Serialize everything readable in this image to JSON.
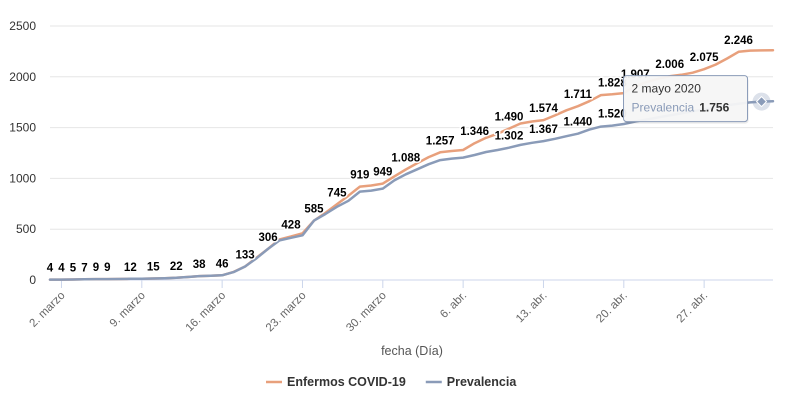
{
  "chart_data": {
    "type": "line",
    "title": "",
    "xlabel": "fecha (Día)",
    "ylabel": "",
    "ylim": [
      0,
      2500
    ],
    "yticks": [
      "0",
      "500",
      "1000",
      "1500",
      "2000",
      "2500"
    ],
    "yticks_values": [
      0,
      500,
      1000,
      1500,
      2000,
      2500
    ],
    "grid": true,
    "legend_position": "bottom-center",
    "x_start": "2020-03-01",
    "x_end": "2020-05-03",
    "xticks": [
      {
        "date": "2020-03-02",
        "label": "2. marzo"
      },
      {
        "date": "2020-03-09",
        "label": "9. marzo"
      },
      {
        "date": "2020-03-16",
        "label": "16. marzo"
      },
      {
        "date": "2020-03-23",
        "label": "23. marzo"
      },
      {
        "date": "2020-03-30",
        "label": "30. marzo"
      },
      {
        "date": "2020-04-06",
        "label": "6. abr."
      },
      {
        "date": "2020-04-13",
        "label": "13. abr."
      },
      {
        "date": "2020-04-20",
        "label": "20. abr."
      },
      {
        "date": "2020-04-27",
        "label": "27. abr."
      }
    ],
    "series": [
      {
        "name": "Enfermos COVID-19",
        "color": "#e8a07c",
        "points": [
          {
            "x": "2020-03-01",
            "y": 4
          },
          {
            "x": "2020-03-02",
            "y": 4
          },
          {
            "x": "2020-03-03",
            "y": 5
          },
          {
            "x": "2020-03-04",
            "y": 7
          },
          {
            "x": "2020-03-05",
            "y": 9
          },
          {
            "x": "2020-03-06",
            "y": 9
          },
          {
            "x": "2020-03-07",
            "y": 10
          },
          {
            "x": "2020-03-08",
            "y": 12
          },
          {
            "x": "2020-03-09",
            "y": 13
          },
          {
            "x": "2020-03-10",
            "y": 15
          },
          {
            "x": "2020-03-11",
            "y": 18
          },
          {
            "x": "2020-03-12",
            "y": 22
          },
          {
            "x": "2020-03-13",
            "y": 30
          },
          {
            "x": "2020-03-14",
            "y": 38
          },
          {
            "x": "2020-03-15",
            "y": 42
          },
          {
            "x": "2020-03-16",
            "y": 46
          },
          {
            "x": "2020-03-17",
            "y": 80
          },
          {
            "x": "2020-03-18",
            "y": 133
          },
          {
            "x": "2020-03-19",
            "y": 220
          },
          {
            "x": "2020-03-20",
            "y": 306
          },
          {
            "x": "2020-03-21",
            "y": 400
          },
          {
            "x": "2020-03-22",
            "y": 428
          },
          {
            "x": "2020-03-23",
            "y": 460
          },
          {
            "x": "2020-03-24",
            "y": 585
          },
          {
            "x": "2020-03-25",
            "y": 660
          },
          {
            "x": "2020-03-26",
            "y": 745
          },
          {
            "x": "2020-03-27",
            "y": 830
          },
          {
            "x": "2020-03-28",
            "y": 919
          },
          {
            "x": "2020-03-29",
            "y": 930
          },
          {
            "x": "2020-03-30",
            "y": 949
          },
          {
            "x": "2020-03-31",
            "y": 1020
          },
          {
            "x": "2020-04-01",
            "y": 1088
          },
          {
            "x": "2020-04-02",
            "y": 1150
          },
          {
            "x": "2020-04-03",
            "y": 1210
          },
          {
            "x": "2020-04-04",
            "y": 1257
          },
          {
            "x": "2020-04-05",
            "y": 1270
          },
          {
            "x": "2020-04-06",
            "y": 1280
          },
          {
            "x": "2020-04-07",
            "y": 1346
          },
          {
            "x": "2020-04-08",
            "y": 1400
          },
          {
            "x": "2020-04-09",
            "y": 1440
          },
          {
            "x": "2020-04-10",
            "y": 1490
          },
          {
            "x": "2020-04-11",
            "y": 1540
          },
          {
            "x": "2020-04-12",
            "y": 1560
          },
          {
            "x": "2020-04-13",
            "y": 1574
          },
          {
            "x": "2020-04-14",
            "y": 1620
          },
          {
            "x": "2020-04-15",
            "y": 1670
          },
          {
            "x": "2020-04-16",
            "y": 1711
          },
          {
            "x": "2020-04-17",
            "y": 1760
          },
          {
            "x": "2020-04-18",
            "y": 1820
          },
          {
            "x": "2020-04-19",
            "y": 1828
          },
          {
            "x": "2020-04-20",
            "y": 1840
          },
          {
            "x": "2020-04-21",
            "y": 1907
          },
          {
            "x": "2020-04-22",
            "y": 1950
          },
          {
            "x": "2020-04-23",
            "y": 1980
          },
          {
            "x": "2020-04-24",
            "y": 2006
          },
          {
            "x": "2020-04-25",
            "y": 2020
          },
          {
            "x": "2020-04-26",
            "y": 2040
          },
          {
            "x": "2020-04-27",
            "y": 2075
          },
          {
            "x": "2020-04-28",
            "y": 2120
          },
          {
            "x": "2020-04-29",
            "y": 2180
          },
          {
            "x": "2020-04-30",
            "y": 2246
          },
          {
            "x": "2020-05-01",
            "y": 2258
          },
          {
            "x": "2020-05-02",
            "y": 2260
          },
          {
            "x": "2020-05-03",
            "y": 2262
          }
        ]
      },
      {
        "name": "Prevalencia",
        "color": "#8a9bb8",
        "points": [
          {
            "x": "2020-03-01",
            "y": 4
          },
          {
            "x": "2020-03-02",
            "y": 4
          },
          {
            "x": "2020-03-03",
            "y": 5
          },
          {
            "x": "2020-03-04",
            "y": 7
          },
          {
            "x": "2020-03-05",
            "y": 9
          },
          {
            "x": "2020-03-06",
            "y": 9
          },
          {
            "x": "2020-03-07",
            "y": 10
          },
          {
            "x": "2020-03-08",
            "y": 12
          },
          {
            "x": "2020-03-09",
            "y": 13
          },
          {
            "x": "2020-03-10",
            "y": 15
          },
          {
            "x": "2020-03-11",
            "y": 18
          },
          {
            "x": "2020-03-12",
            "y": 22
          },
          {
            "x": "2020-03-13",
            "y": 30
          },
          {
            "x": "2020-03-14",
            "y": 38
          },
          {
            "x": "2020-03-15",
            "y": 42
          },
          {
            "x": "2020-03-16",
            "y": 46
          },
          {
            "x": "2020-03-17",
            "y": 78
          },
          {
            "x": "2020-03-18",
            "y": 133
          },
          {
            "x": "2020-03-19",
            "y": 215
          },
          {
            "x": "2020-03-20",
            "y": 306
          },
          {
            "x": "2020-03-21",
            "y": 390
          },
          {
            "x": "2020-03-22",
            "y": 415
          },
          {
            "x": "2020-03-23",
            "y": 440
          },
          {
            "x": "2020-03-24",
            "y": 585
          },
          {
            "x": "2020-03-25",
            "y": 650
          },
          {
            "x": "2020-03-26",
            "y": 720
          },
          {
            "x": "2020-03-27",
            "y": 780
          },
          {
            "x": "2020-03-28",
            "y": 870
          },
          {
            "x": "2020-03-29",
            "y": 880
          },
          {
            "x": "2020-03-30",
            "y": 900
          },
          {
            "x": "2020-03-31",
            "y": 980
          },
          {
            "x": "2020-04-01",
            "y": 1040
          },
          {
            "x": "2020-04-02",
            "y": 1090
          },
          {
            "x": "2020-04-03",
            "y": 1140
          },
          {
            "x": "2020-04-04",
            "y": 1180
          },
          {
            "x": "2020-04-05",
            "y": 1195
          },
          {
            "x": "2020-04-06",
            "y": 1205
          },
          {
            "x": "2020-04-07",
            "y": 1230
          },
          {
            "x": "2020-04-08",
            "y": 1260
          },
          {
            "x": "2020-04-09",
            "y": 1280
          },
          {
            "x": "2020-04-10",
            "y": 1302
          },
          {
            "x": "2020-04-11",
            "y": 1330
          },
          {
            "x": "2020-04-12",
            "y": 1350
          },
          {
            "x": "2020-04-13",
            "y": 1367
          },
          {
            "x": "2020-04-14",
            "y": 1390
          },
          {
            "x": "2020-04-15",
            "y": 1415
          },
          {
            "x": "2020-04-16",
            "y": 1440
          },
          {
            "x": "2020-04-17",
            "y": 1480
          },
          {
            "x": "2020-04-18",
            "y": 1510
          },
          {
            "x": "2020-04-19",
            "y": 1520
          },
          {
            "x": "2020-04-20",
            "y": 1535
          },
          {
            "x": "2020-04-21",
            "y": 1560
          },
          {
            "x": "2020-04-22",
            "y": 1580
          },
          {
            "x": "2020-04-23",
            "y": 1600
          },
          {
            "x": "2020-04-24",
            "y": 1620
          },
          {
            "x": "2020-04-25",
            "y": 1640
          },
          {
            "x": "2020-04-26",
            "y": 1660
          },
          {
            "x": "2020-04-27",
            "y": 1680
          },
          {
            "x": "2020-04-28",
            "y": 1700
          },
          {
            "x": "2020-04-29",
            "y": 1720
          },
          {
            "x": "2020-04-30",
            "y": 1735
          },
          {
            "x": "2020-05-01",
            "y": 1748
          },
          {
            "x": "2020-05-02",
            "y": 1756
          },
          {
            "x": "2020-05-03",
            "y": 1760
          }
        ]
      }
    ],
    "data_labels": [
      {
        "series": 0,
        "x": "2020-03-01",
        "text": "4"
      },
      {
        "series": 0,
        "x": "2020-03-02",
        "text": "4"
      },
      {
        "series": 0,
        "x": "2020-03-03",
        "text": "5"
      },
      {
        "series": 0,
        "x": "2020-03-04",
        "text": "7"
      },
      {
        "series": 0,
        "x": "2020-03-05",
        "text": "9"
      },
      {
        "series": 0,
        "x": "2020-03-06",
        "text": "9"
      },
      {
        "series": 0,
        "x": "2020-03-08",
        "text": "12"
      },
      {
        "series": 0,
        "x": "2020-03-10",
        "text": "15"
      },
      {
        "series": 0,
        "x": "2020-03-12",
        "text": "22"
      },
      {
        "series": 0,
        "x": "2020-03-14",
        "text": "38"
      },
      {
        "series": 0,
        "x": "2020-03-16",
        "text": "46"
      },
      {
        "series": 0,
        "x": "2020-03-18",
        "text": "133"
      },
      {
        "series": 0,
        "x": "2020-03-20",
        "text": "306"
      },
      {
        "series": 0,
        "x": "2020-03-22",
        "text": "428"
      },
      {
        "series": 0,
        "x": "2020-03-24",
        "text": "585"
      },
      {
        "series": 0,
        "x": "2020-03-26",
        "text": "745"
      },
      {
        "series": 0,
        "x": "2020-03-28",
        "text": "919"
      },
      {
        "series": 0,
        "x": "2020-03-30",
        "text": "949"
      },
      {
        "series": 0,
        "x": "2020-04-01",
        "text": "1.088"
      },
      {
        "series": 0,
        "x": "2020-04-04",
        "text": "1.257"
      },
      {
        "series": 0,
        "x": "2020-04-07",
        "text": "1.346"
      },
      {
        "series": 0,
        "x": "2020-04-10",
        "text": "1.490"
      },
      {
        "series": 1,
        "x": "2020-04-10",
        "text": "1.302"
      },
      {
        "series": 0,
        "x": "2020-04-13",
        "text": "1.574"
      },
      {
        "series": 1,
        "x": "2020-04-13",
        "text": "1.367"
      },
      {
        "series": 0,
        "x": "2020-04-16",
        "text": "1.711"
      },
      {
        "series": 1,
        "x": "2020-04-16",
        "text": "1.440"
      },
      {
        "series": 0,
        "x": "2020-04-19",
        "text": "1.828"
      },
      {
        "series": 1,
        "x": "2020-04-19",
        "text": "1.520"
      },
      {
        "series": 0,
        "x": "2020-04-21",
        "text": "1.907"
      },
      {
        "series": 0,
        "x": "2020-04-24",
        "text": "2.006"
      },
      {
        "series": 0,
        "x": "2020-04-27",
        "text": "2.075"
      },
      {
        "series": 0,
        "x": "2020-04-30",
        "text": "2.246"
      }
    ],
    "tooltip": {
      "date": "2 mayo 2020",
      "label": "Prevalencia",
      "value": "1.756",
      "series": 1,
      "x": "2020-05-02"
    }
  }
}
